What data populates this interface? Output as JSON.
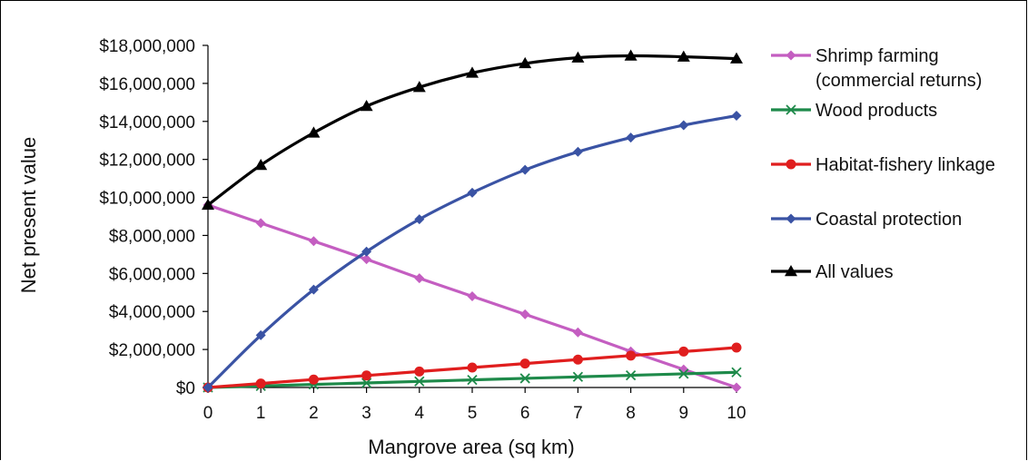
{
  "chart_data": {
    "type": "line",
    "xlabel": "Mangrove area (sq km)",
    "ylabel": "Net present value",
    "x": [
      0,
      1,
      2,
      3,
      4,
      5,
      6,
      7,
      8,
      9,
      10
    ],
    "xlim": [
      0,
      10
    ],
    "ylim": [
      0,
      18000000
    ],
    "y_ticks": [
      0,
      2000000,
      4000000,
      6000000,
      8000000,
      10000000,
      12000000,
      14000000,
      16000000,
      18000000
    ],
    "y_tick_labels": [
      "$0",
      "$2,000,000",
      "$4,000,000",
      "$6,000,000",
      "$8,000,000",
      "$10,000,000",
      "$12,000,000",
      "$14,000,000",
      "$16,000,000",
      "$18,000,000"
    ],
    "x_tick_labels": [
      "0",
      "1",
      "2",
      "3",
      "4",
      "5",
      "6",
      "7",
      "8",
      "9",
      "10"
    ],
    "grid": false,
    "legend_position": "right",
    "series": [
      {
        "name": "Shrimp farming (commercial returns)",
        "legend_lines": [
          "Shrimp farming",
          "(commercial returns)"
        ],
        "color": "#c45ec1",
        "marker": "diamond",
        "values": [
          9600000,
          8650000,
          7700000,
          6750000,
          5750000,
          4800000,
          3850000,
          2900000,
          1900000,
          950000,
          0
        ]
      },
      {
        "name": "Wood products",
        "legend_lines": [
          "Wood products"
        ],
        "color": "#1e8a4a",
        "marker": "x",
        "values": [
          0,
          80000,
          160000,
          240000,
          320000,
          400000,
          480000,
          560000,
          640000,
          720000,
          800000
        ]
      },
      {
        "name": "Habitat-fishery linkage",
        "legend_lines": [
          "Habitat-fishery linkage"
        ],
        "color": "#e01e1e",
        "marker": "circle",
        "values": [
          0,
          210000,
          420000,
          630000,
          840000,
          1050000,
          1260000,
          1470000,
          1680000,
          1890000,
          2100000
        ]
      },
      {
        "name": "Coastal protection",
        "legend_lines": [
          "Coastal protection"
        ],
        "color": "#3a53a4",
        "marker": "diamond",
        "values": [
          0,
          2750000,
          5150000,
          7150000,
          8850000,
          10250000,
          11450000,
          12400000,
          13150000,
          13800000,
          14300000
        ]
      },
      {
        "name": "All values",
        "legend_lines": [
          "All values"
        ],
        "color": "#000000",
        "marker": "triangle",
        "values": [
          9600000,
          11700000,
          13400000,
          14800000,
          15800000,
          16550000,
          17050000,
          17350000,
          17450000,
          17400000,
          17300000
        ]
      }
    ]
  }
}
